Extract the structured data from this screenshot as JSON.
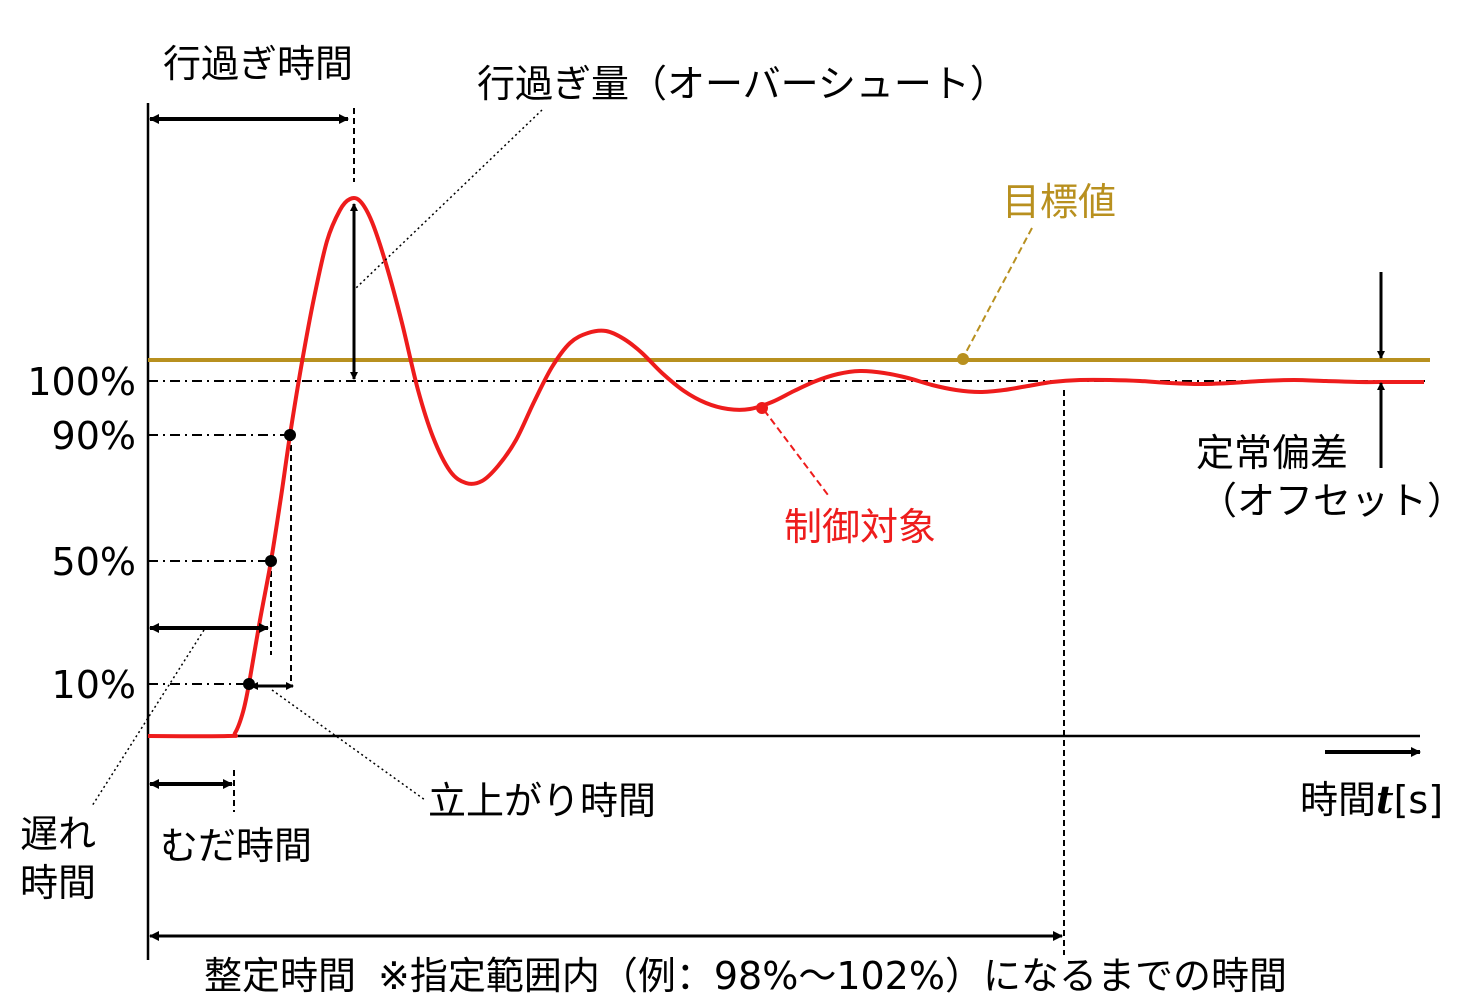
{
  "labels": {
    "overshoot_time": "行過ぎ時間",
    "overshoot": "行過ぎ量（オーバーシュート）",
    "setpoint": "目標値",
    "steady_state_error": "定常偏差",
    "offset": "（オフセット）",
    "controlled_object": "制御対象",
    "rise_time": "立上がり時間",
    "dead_time": "むだ時間",
    "delay_time_line1": "遅れ",
    "delay_time_line2": "時間",
    "time_axis": "時間",
    "time_symbol": "t",
    "time_unit": "[s]",
    "settling_time": "整定時間",
    "settling_note": "※指定範囲内（例：98%〜102%）になるまでの時間"
  },
  "levels": {
    "l100": "100%",
    "l90": "90%",
    "l50": "50%",
    "l10": "10%"
  },
  "colors": {
    "response": "#ee1c1c",
    "setpoint": "#b8901f",
    "ink": "#000000"
  }
}
